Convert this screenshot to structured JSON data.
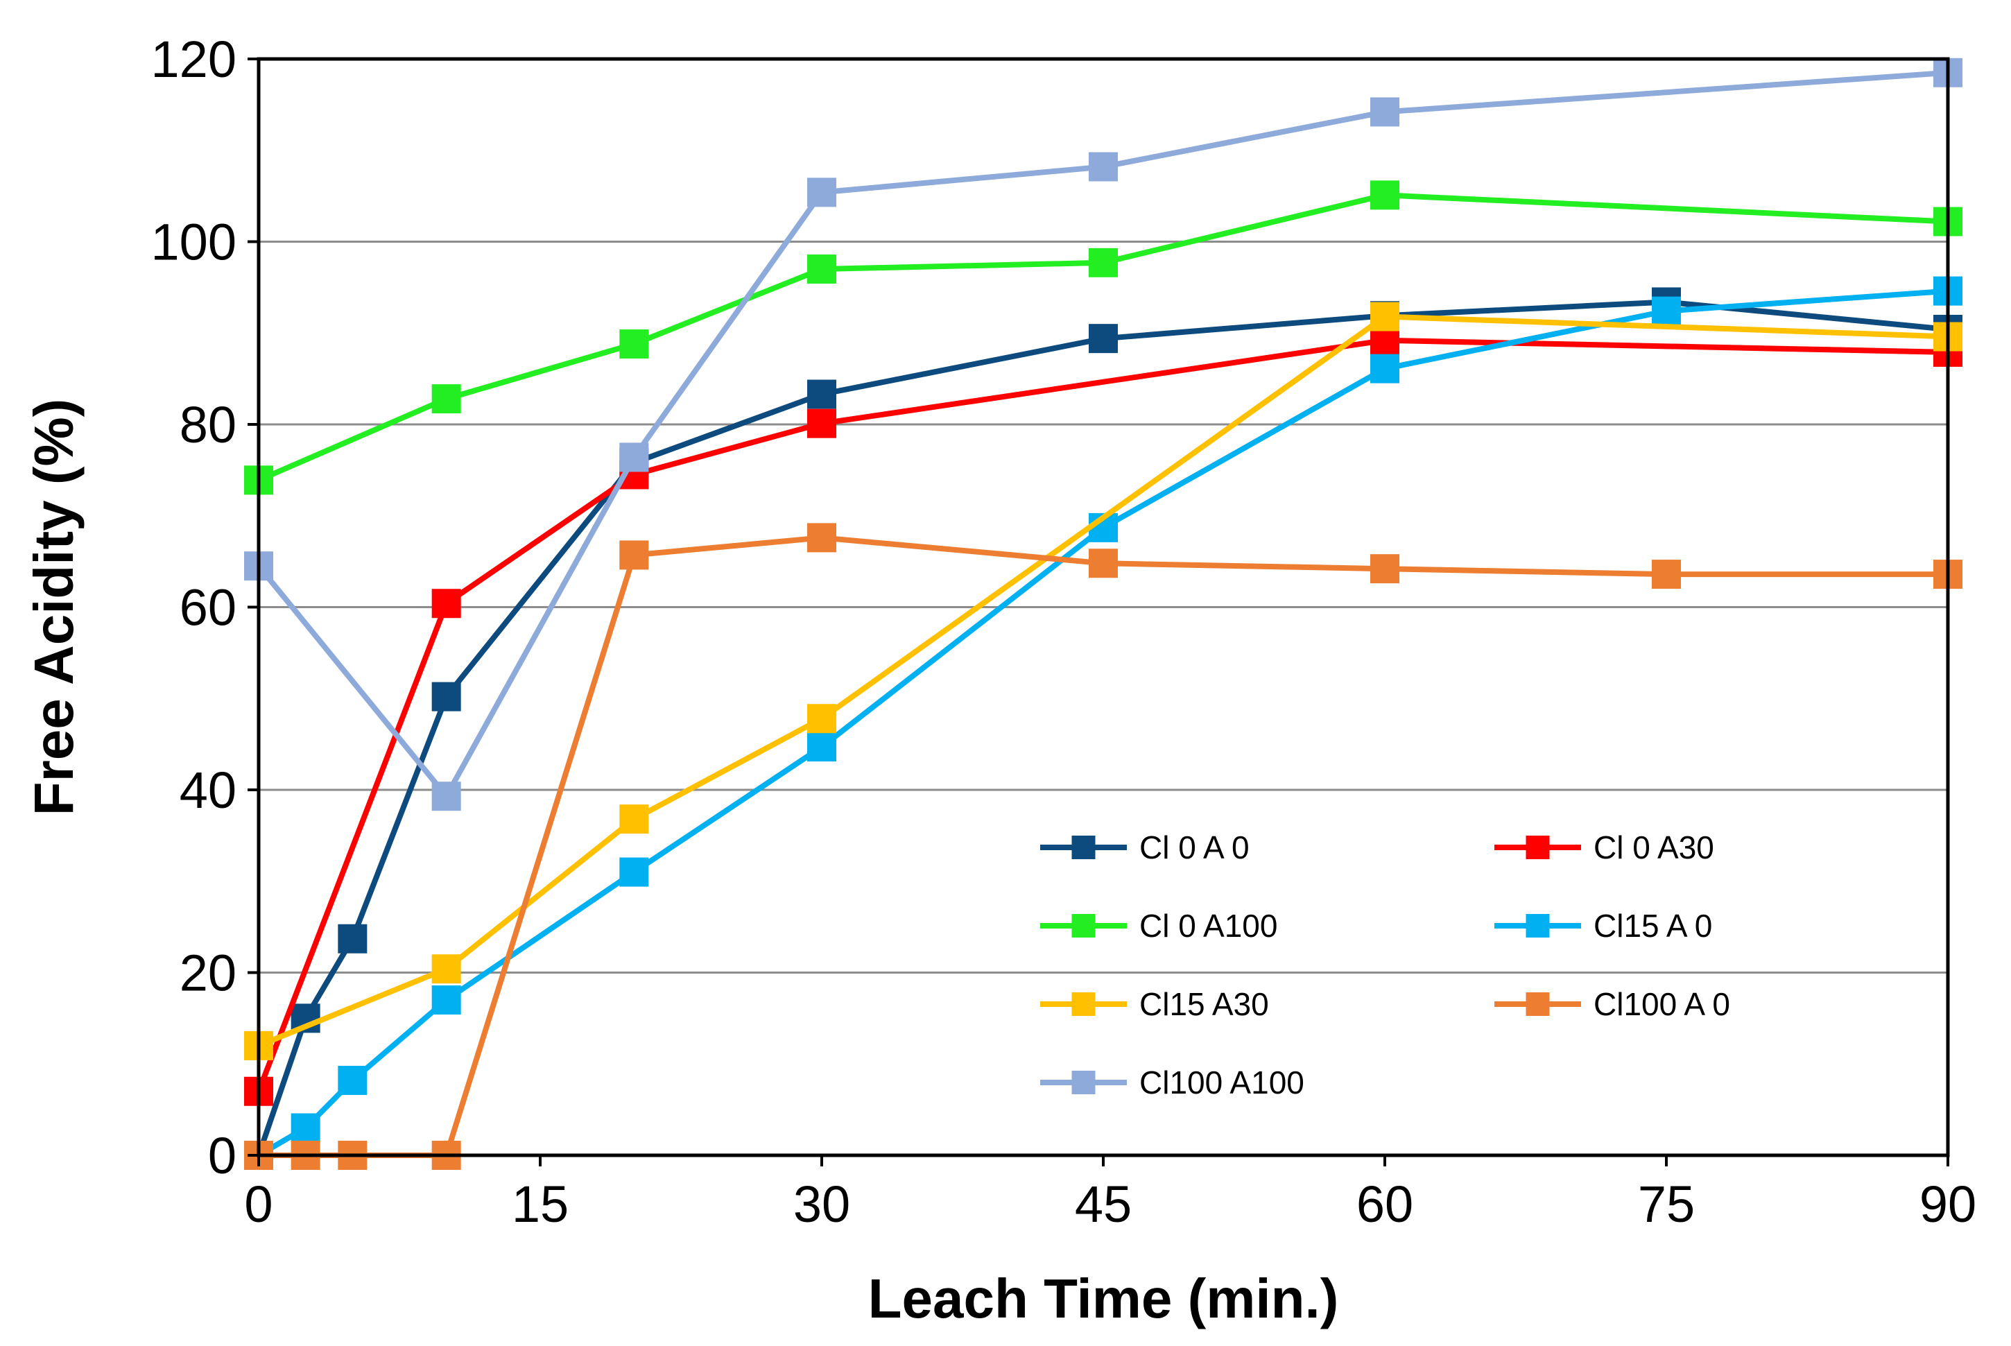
{
  "chart_data": {
    "type": "line",
    "title": "",
    "xlabel": "Leach Time (min.)",
    "ylabel": "Free Acidity (%)",
    "xlim": [
      0,
      90
    ],
    "ylim": [
      0,
      120
    ],
    "xticks": [
      0,
      15,
      30,
      45,
      60,
      75,
      90
    ],
    "yticks": [
      0,
      20,
      40,
      60,
      80,
      100,
      120
    ],
    "grid": "horizontal",
    "legend_position": "bottom-right inside plot",
    "series": [
      {
        "name": "Cl 0 A 0",
        "color": "#0D4A7E",
        "x": [
          0,
          2.5,
          5,
          10,
          20,
          30,
          45,
          60,
          75,
          90
        ],
        "y": [
          0,
          15,
          23.7,
          50.2,
          75.8,
          83.3,
          89.4,
          91.9,
          93.4,
          90.4
        ]
      },
      {
        "name": "Cl 0 A30",
        "color": "#FF0000",
        "x": [
          0,
          10,
          20,
          30,
          60,
          90
        ],
        "y": [
          7,
          60.4,
          74.5,
          80.1,
          89.2,
          87.9
        ]
      },
      {
        "name": "Cl 0 A100",
        "color": "#22EE22",
        "x": [
          0,
          10,
          20,
          30,
          45,
          60,
          90
        ],
        "y": [
          73.9,
          82.8,
          88.8,
          97,
          97.7,
          105.1,
          102.2
        ]
      },
      {
        "name": "Cl15 A 0",
        "color": "#00B0F0",
        "x": [
          0,
          2.5,
          5,
          10,
          20,
          30,
          45,
          60,
          75,
          90
        ],
        "y": [
          0,
          3,
          8.2,
          17,
          31,
          44.7,
          68.7,
          86.1,
          92.4,
          94.6
        ]
      },
      {
        "name": "Cl15 A30",
        "color": "#FFC000",
        "x": [
          0,
          10,
          20,
          30,
          60,
          90
        ],
        "y": [
          12,
          20.4,
          36.8,
          47.8,
          91.8,
          89.6
        ]
      },
      {
        "name": "Cl100 A 0",
        "color": "#ED7D31",
        "x": [
          0,
          2.5,
          5,
          10,
          20,
          30,
          45,
          60,
          75,
          90
        ],
        "y": [
          0,
          0,
          0,
          0,
          65.7,
          67.6,
          64.8,
          64.2,
          63.6,
          63.6
        ]
      },
      {
        "name": "Cl100 A100",
        "color": "#8EAADB",
        "x": [
          0,
          10,
          20,
          30,
          45,
          60,
          90
        ],
        "y": [
          64.5,
          39.3,
          76.4,
          105.4,
          108.2,
          114.2,
          118.5
        ]
      }
    ]
  }
}
